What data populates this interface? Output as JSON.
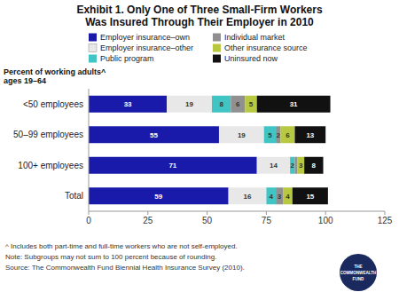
{
  "chart_data": {
    "type": "bar",
    "orientation": "horizontal",
    "stacked": true,
    "data_labels": true,
    "grid": false,
    "legend": "top",
    "title": "Exhibit 1. Only One of Three Small-Firm Workers\nWas Insured Through Their Employer in 2010",
    "ylabel": "Percent of working adults^\nages 19–64",
    "categories": [
      "Total",
      "100+ employees",
      "50–99 employees",
      "<50 employees"
    ],
    "series": [
      {
        "name": "Employer insurance–own",
        "color": "#1a1aaa",
        "values": [
          59,
          71,
          55,
          33
        ]
      },
      {
        "name": "Employer insurance–other",
        "color": "#e8e8e8",
        "values": [
          16,
          14,
          19,
          19
        ]
      },
      {
        "name": "Public program",
        "color": "#40c4c4",
        "values": [
          4,
          2,
          5,
          8
        ]
      },
      {
        "name": "Individual market",
        "color": "#909090",
        "values": [
          3,
          1,
          2,
          6
        ]
      },
      {
        "name": "Other insurance source",
        "color": "#b8c840",
        "values": [
          4,
          3,
          6,
          5
        ]
      },
      {
        "name": "Uninsured now",
        "color": "#111111",
        "values": [
          15,
          8,
          13,
          31
        ]
      }
    ],
    "xlim": [
      0,
      125
    ],
    "xticks": [
      0,
      25,
      50,
      75,
      100,
      125
    ],
    "annotations": [
      "^ Includes both part-time and full-time workers who are not self-employed.",
      "Note: Subgroups may not sum to 100 percent because of rounding.",
      "Source: The Commonwealth Fund Biennial Health Insurance Survey (2010).",
      "THE\nCOMMONWEALTH\nFUND"
    ]
  }
}
